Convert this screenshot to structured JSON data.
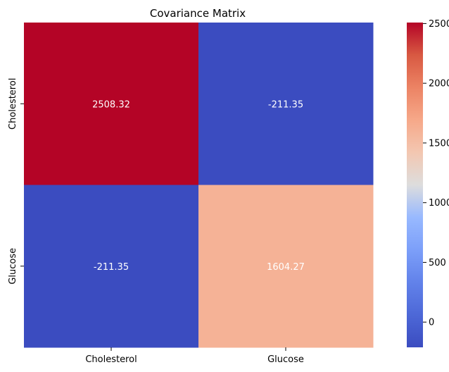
{
  "chart_data": {
    "type": "heatmap",
    "title": "Covariance Matrix",
    "x_categories": [
      "Cholesterol",
      "Glucose"
    ],
    "y_categories": [
      "Cholesterol",
      "Glucose"
    ],
    "values": [
      [
        2508.32,
        -211.35
      ],
      [
        -211.35,
        1604.27
      ]
    ],
    "cell_labels": [
      [
        "2508.32",
        "-211.35"
      ],
      [
        "-211.35",
        "1604.27"
      ]
    ],
    "colormap": "coolwarm",
    "colorbar": {
      "range": [
        -211.35,
        2508.32
      ],
      "ticks": [
        0,
        500,
        1000,
        1500,
        2000,
        2500
      ],
      "tick_labels": [
        "0",
        "500",
        "1000",
        "1500",
        "2000",
        "2500"
      ]
    },
    "colors": {
      "low": "#3b4cc0",
      "mid": "#dddddd",
      "high": "#b40426"
    },
    "grid": false
  }
}
